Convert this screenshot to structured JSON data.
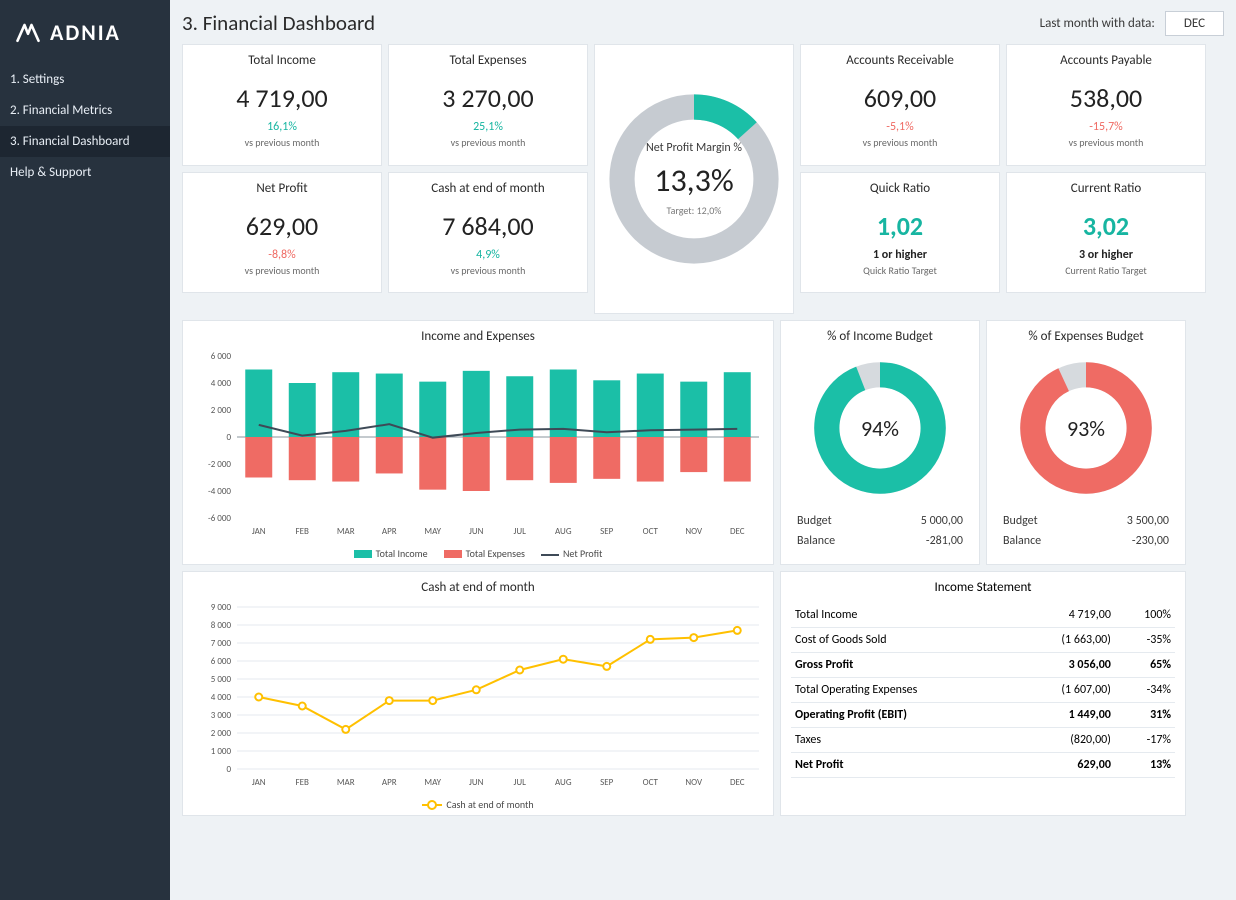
{
  "brand": "ADNIA",
  "sidebar": {
    "items": [
      {
        "label": "1. Settings"
      },
      {
        "label": "2. Financial Metrics"
      },
      {
        "label": "3. Financial Dashboard",
        "active": true
      },
      {
        "label": "Help & Support"
      }
    ]
  },
  "header": {
    "title": "3. Financial Dashboard",
    "last_month_label": "Last month with data:",
    "last_month_value": "DEC"
  },
  "colors": {
    "teal": "#1bbfa7",
    "red": "#ef6b64",
    "grey": "#c6cbd1",
    "dark": "#3e4a57",
    "yellow": "#ffc000",
    "bg": "#eef2f5"
  },
  "kpis": {
    "total_income": {
      "title": "Total Income",
      "value": "4 719,00",
      "pct": "16,1%",
      "pct_positive": true,
      "sub": "vs previous month"
    },
    "total_expenses": {
      "title": "Total Expenses",
      "value": "3 270,00",
      "pct": "25,1%",
      "pct_positive": true,
      "sub": "vs previous month"
    },
    "net_profit": {
      "title": "Net Profit",
      "value": "629,00",
      "pct": "-8,8%",
      "pct_positive": false,
      "sub": "vs previous month"
    },
    "cash_eom": {
      "title": "Cash at end of month",
      "value": "7 684,00",
      "pct": "4,9%",
      "pct_positive": true,
      "sub": "vs previous month"
    },
    "ar": {
      "title": "Accounts Receivable",
      "value": "609,00",
      "pct": "-5,1%",
      "pct_positive": false,
      "sub": "vs previous month"
    },
    "ap": {
      "title": "Accounts Payable",
      "value": "538,00",
      "pct": "-15,7%",
      "pct_positive": false,
      "sub": "vs previous month"
    },
    "quick_ratio": {
      "title": "Quick Ratio",
      "value": "1,02",
      "target": "1 or higher",
      "sub": "Quick Ratio Target"
    },
    "current_ratio": {
      "title": "Current Ratio",
      "value": "3,02",
      "target": "3 or higher",
      "sub": "Current Ratio Target"
    }
  },
  "gauge": {
    "label": "Net Profit Margin %",
    "value": "13,3%",
    "target_label": "Target:  12,0%",
    "percent_fill": 0.133,
    "fill_color": "#1bbfa7",
    "track_color": "#c6cbd1"
  },
  "income_expense_chart": {
    "title": "Income and Expenses",
    "categories": [
      "JAN",
      "FEB",
      "MAR",
      "APR",
      "MAY",
      "JUN",
      "JUL",
      "AUG",
      "SEP",
      "OCT",
      "NOV",
      "DEC"
    ],
    "income": [
      5000,
      4000,
      4800,
      4700,
      4100,
      4900,
      4500,
      5000,
      4200,
      4700,
      4100,
      4800
    ],
    "expenses": [
      -3000,
      -3200,
      -3300,
      -2700,
      -3900,
      -4000,
      -3200,
      -3400,
      -3100,
      -3300,
      -2600,
      -3300
    ],
    "net": [
      900,
      100,
      450,
      950,
      -50,
      300,
      550,
      600,
      350,
      500,
      550,
      600
    ],
    "ylim": [
      -6000,
      6000
    ],
    "ytick_step": 2000,
    "bar_color_income": "#1bbfa7",
    "bar_color_expense": "#ef6b64",
    "line_color": "#3e4a57",
    "legend": [
      "Total Income",
      "Total Expenses",
      "Net Profit"
    ]
  },
  "income_budget_donut": {
    "title": "% of Income Budget",
    "percent": 94,
    "value_text": "94%",
    "color": "#1bbfa7",
    "track": "#d6dade",
    "budget_label": "Budget",
    "budget_value": "5 000,00",
    "balance_label": "Balance",
    "balance_value": "-281,00"
  },
  "expense_budget_donut": {
    "title": "% of Expenses Budget",
    "percent": 93,
    "value_text": "93%",
    "color": "#ef6b64",
    "track": "#d6dade",
    "budget_label": "Budget",
    "budget_value": "3 500,00",
    "balance_label": "Balance",
    "balance_value": "-230,00"
  },
  "cash_chart": {
    "title": "Cash at end of month",
    "categories": [
      "JAN",
      "FEB",
      "MAR",
      "APR",
      "MAY",
      "JUN",
      "JUL",
      "AUG",
      "SEP",
      "OCT",
      "NOV",
      "DEC"
    ],
    "values": [
      4000,
      3500,
      2200,
      3800,
      3800,
      4400,
      5500,
      6100,
      5700,
      7200,
      7300,
      7700
    ],
    "ylim": [
      0,
      9000
    ],
    "ytick_step": 1000,
    "line_color": "#ffc000",
    "marker_fill": "#ffffff",
    "legend": "Cash at end of month"
  },
  "income_statement": {
    "title": "Income Statement",
    "rows": [
      {
        "label": "Total Income",
        "amount": "4 719,00",
        "pct": "100%",
        "bold": false
      },
      {
        "label": "Cost of Goods Sold",
        "amount": "(1 663,00)",
        "pct": "-35%",
        "bold": false
      },
      {
        "label": "Gross Profit",
        "amount": "3 056,00",
        "pct": "65%",
        "bold": true
      },
      {
        "label": "Total Operating Expenses",
        "amount": "(1 607,00)",
        "pct": "-34%",
        "bold": false
      },
      {
        "label": "Operating Profit (EBIT)",
        "amount": "1 449,00",
        "pct": "31%",
        "bold": true
      },
      {
        "label": "Taxes",
        "amount": "(820,00)",
        "pct": "-17%",
        "bold": false
      },
      {
        "label": "Net Profit",
        "amount": "629,00",
        "pct": "13%",
        "bold": true
      }
    ]
  }
}
